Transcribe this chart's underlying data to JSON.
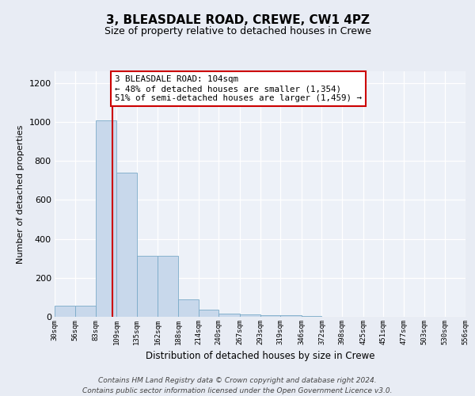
{
  "title1": "3, BLEASDALE ROAD, CREWE, CW1 4PZ",
  "title2": "Size of property relative to detached houses in Crewe",
  "xlabel": "Distribution of detached houses by size in Crewe",
  "ylabel": "Number of detached properties",
  "bin_edges": [
    30,
    56,
    83,
    109,
    135,
    162,
    188,
    214,
    240,
    267,
    293,
    319,
    346,
    372,
    398,
    425,
    451,
    477,
    503,
    530,
    556
  ],
  "bin_counts": [
    57,
    57,
    1008,
    740,
    315,
    315,
    90,
    38,
    18,
    12,
    10,
    8,
    5,
    0,
    0,
    0,
    0,
    0,
    0,
    0
  ],
  "bar_color": "#c8d8eb",
  "bar_edge_color": "#7aaac8",
  "property_line_x": 104,
  "property_line_color": "#cc0000",
  "annotation_text": "3 BLEASDALE ROAD: 104sqm\n← 48% of detached houses are smaller (1,354)\n51% of semi-detached houses are larger (1,459) →",
  "annotation_box_facecolor": "#ffffff",
  "annotation_box_edgecolor": "#cc0000",
  "ylim": [
    0,
    1260
  ],
  "yticks": [
    0,
    200,
    400,
    600,
    800,
    1000,
    1200
  ],
  "footer_text": "Contains HM Land Registry data © Crown copyright and database right 2024.\nContains public sector information licensed under the Open Government Licence v3.0.",
  "bg_color": "#e8ecf4",
  "plot_bg_color": "#edf1f8",
  "title1_fontsize": 11,
  "title2_fontsize": 9
}
